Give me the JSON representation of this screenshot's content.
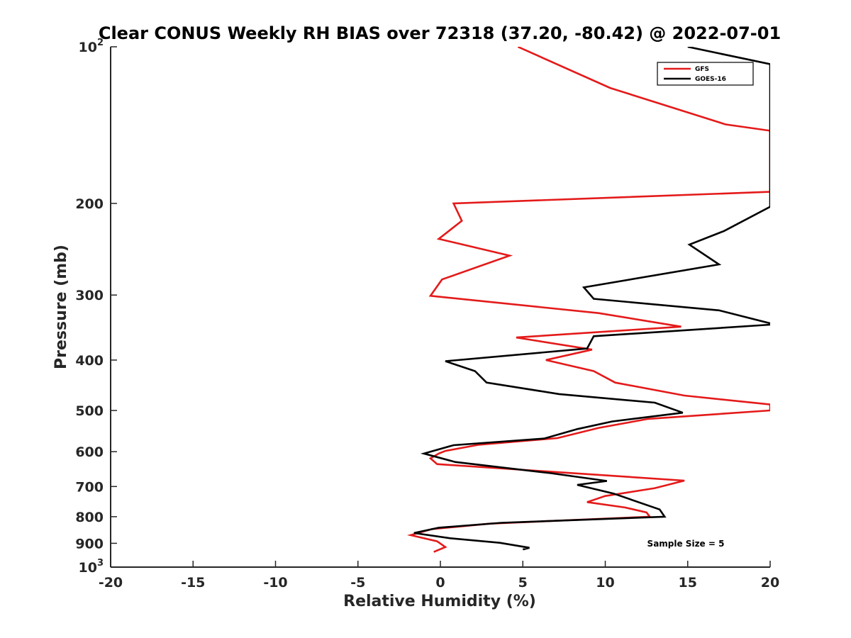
{
  "chart_data": {
    "type": "line",
    "title": "Clear CONUS Weekly RH BIAS over 72318 (37.20, -80.42) @ 2022-07-01",
    "xlabel": "Relative Humidity (%)",
    "ylabel": "Pressure (mb)",
    "xlim": [
      -20,
      20
    ],
    "ylim": [
      100,
      1000
    ],
    "y_scale": "log",
    "y_reversed": true,
    "grid": false,
    "legend_position": "top-right",
    "x_ticks": [
      -20,
      -15,
      -10,
      -5,
      0,
      5,
      10,
      15,
      20
    ],
    "x_tick_labels": [
      "-20",
      "-15",
      "-10",
      "-5",
      "0",
      "5",
      "10",
      "15",
      "20"
    ],
    "y_ticks": [
      100,
      200,
      300,
      400,
      500,
      600,
      700,
      800,
      900,
      1000
    ],
    "y_tick_labels": [
      {
        "base": "10",
        "exp": "2"
      },
      {
        "base": "200"
      },
      {
        "base": "300"
      },
      {
        "base": "400"
      },
      {
        "base": "500"
      },
      {
        "base": "600"
      },
      {
        "base": "700"
      },
      {
        "base": "800"
      },
      {
        "base": "900"
      },
      {
        "base": "10",
        "exp": "3"
      }
    ],
    "series": [
      {
        "name": "GFS",
        "color": "#e41a1a",
        "points": [
          [
            4.7,
            100
          ],
          [
            10.3,
            120
          ],
          [
            17.3,
            141
          ],
          [
            20,
            145
          ],
          [
            20,
            190
          ],
          [
            0.8,
            200
          ],
          [
            1.3,
            216
          ],
          [
            -0.1,
            234
          ],
          [
            4.2,
            252
          ],
          [
            0.1,
            280
          ],
          [
            -0.6,
            301
          ],
          [
            9.6,
            325
          ],
          [
            14.6,
            345
          ],
          [
            4.6,
            362
          ],
          [
            9.2,
            382
          ],
          [
            6.4,
            400
          ],
          [
            9.3,
            420
          ],
          [
            10.6,
            442
          ],
          [
            14.8,
            468
          ],
          [
            20,
            487
          ],
          [
            20,
            500
          ],
          [
            12.6,
            519
          ],
          [
            9.6,
            540
          ],
          [
            7.1,
            565
          ],
          [
            2.3,
            582
          ],
          [
            0.3,
            598
          ],
          [
            -0.1,
            605
          ],
          [
            -0.6,
            618
          ],
          [
            -0.2,
            634
          ],
          [
            14.8,
            682
          ],
          [
            13.0,
            705
          ],
          [
            10.0,
            730
          ],
          [
            8.9,
            750
          ],
          [
            11.2,
            768
          ],
          [
            12.5,
            785
          ],
          [
            12.7,
            800
          ],
          [
            3.0,
            825
          ],
          [
            -0.5,
            845
          ],
          [
            -1.8,
            868
          ],
          [
            -0.2,
            892
          ],
          [
            0.3,
            915
          ],
          [
            -0.4,
            935
          ]
        ]
      },
      {
        "name": "GOES-16",
        "color": "#000000",
        "points": [
          [
            15.0,
            100
          ],
          [
            20,
            108
          ],
          [
            20,
            203
          ],
          [
            17.2,
            226
          ],
          [
            15.1,
            240
          ],
          [
            16.9,
            262
          ],
          [
            8.7,
            290
          ],
          [
            9.3,
            305
          ],
          [
            16.9,
            321
          ],
          [
            20,
            340
          ],
          [
            20,
            342
          ],
          [
            9.3,
            360
          ],
          [
            8.9,
            380
          ],
          [
            0.3,
            402
          ],
          [
            2.1,
            420
          ],
          [
            2.8,
            442
          ],
          [
            7.2,
            465
          ],
          [
            13.0,
            483
          ],
          [
            14.7,
            505
          ],
          [
            10.4,
            525
          ],
          [
            8.3,
            543
          ],
          [
            6.3,
            566
          ],
          [
            0.8,
            583
          ],
          [
            -1.0,
            605
          ],
          [
            0.9,
            628
          ],
          [
            6.7,
            660
          ],
          [
            10.1,
            683
          ],
          [
            8.3,
            695
          ],
          [
            10.5,
            722
          ],
          [
            13.3,
            775
          ],
          [
            13.6,
            800
          ],
          [
            3.7,
            822
          ],
          [
            -0.1,
            840
          ],
          [
            -1.6,
            860
          ],
          [
            0.6,
            880
          ],
          [
            3.6,
            898
          ],
          [
            5.4,
            918
          ],
          [
            5.0,
            925
          ]
        ]
      }
    ],
    "annotations": [
      "Sample Size = 5"
    ]
  }
}
